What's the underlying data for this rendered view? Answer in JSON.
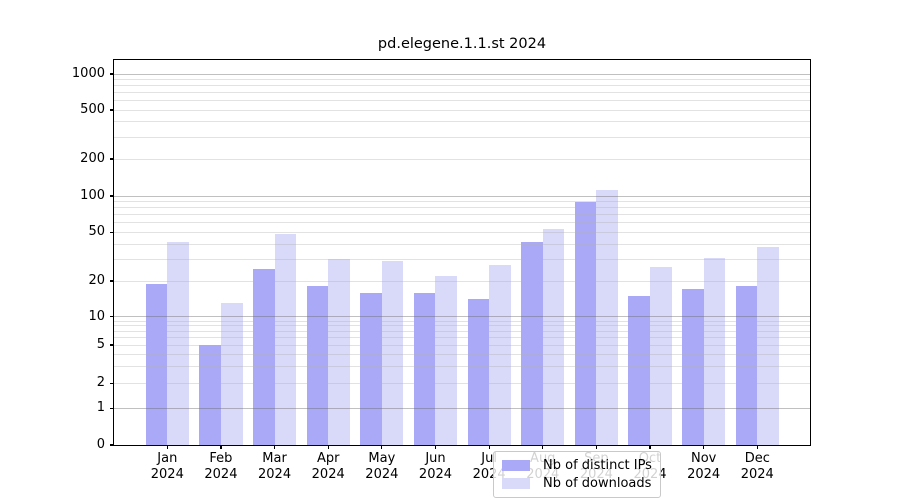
{
  "title": "pd.elegene.1.1.st 2024",
  "chart_data": {
    "type": "bar",
    "title": "pd.elegene.1.1.st 2024",
    "categories": [
      "Jan",
      "Feb",
      "Mar",
      "Apr",
      "May",
      "Jun",
      "Jul",
      "Aug",
      "Sep",
      "Oct",
      "Nov",
      "Dec"
    ],
    "x_year_label": "2024",
    "series": [
      {
        "name": "Nb of distinct IPs",
        "color": "#a9a9f7",
        "values": [
          19,
          5,
          25,
          18,
          16,
          16,
          14,
          42,
          90,
          15,
          17,
          18
        ]
      },
      {
        "name": "Nb of downloads",
        "color": "#d9d9f9",
        "values": [
          42,
          13,
          48,
          30,
          29,
          22,
          27,
          53,
          112,
          26,
          31,
          38
        ]
      }
    ],
    "yscale": "symlog",
    "y_ticks": [
      0,
      1,
      2,
      5,
      10,
      20,
      50,
      100,
      200,
      500,
      1000
    ],
    "ylim": [
      0,
      1300
    ],
    "grid": "horizontal major and minor gridlines drawn over bars",
    "legend_position": "inside plot, lower center"
  }
}
